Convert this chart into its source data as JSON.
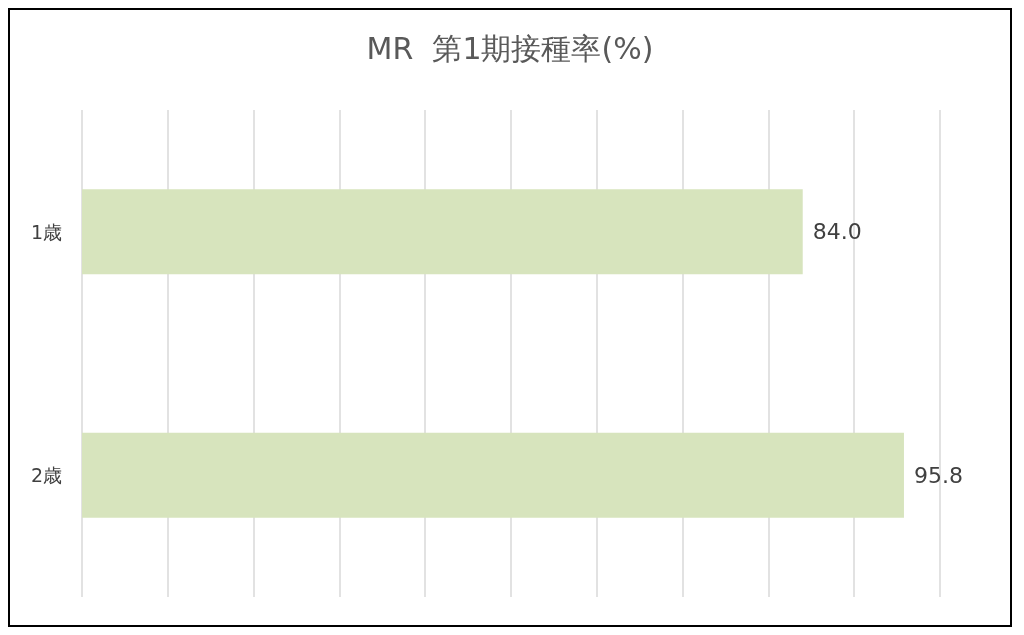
{
  "chart_data": {
    "type": "bar",
    "title": "MR  第1期接種率(%)",
    "orientation": "horizontal",
    "categories": [
      "1歳",
      "2歳"
    ],
    "series": [
      {
        "color": "#d7e4bd",
        "values": [
          84.0,
          95.8
        ],
        "value_labels": [
          "84.0",
          "95.8"
        ]
      }
    ],
    "xlim": [
      0,
      100
    ],
    "xticks": [
      {
        "value": 0,
        "label": null
      },
      {
        "value": 10,
        "label": null
      },
      {
        "value": 20,
        "label": null
      },
      {
        "value": 30,
        "label": null
      },
      {
        "value": 40,
        "label": null
      },
      {
        "value": 50,
        "label": null
      },
      {
        "value": 60,
        "label": null
      },
      {
        "value": 70,
        "label": null
      },
      {
        "value": 80,
        "label": null
      },
      {
        "value": 90,
        "label": null
      },
      {
        "value": 100,
        "label": null
      }
    ],
    "tick_labels": "y",
    "grid": "x"
  }
}
